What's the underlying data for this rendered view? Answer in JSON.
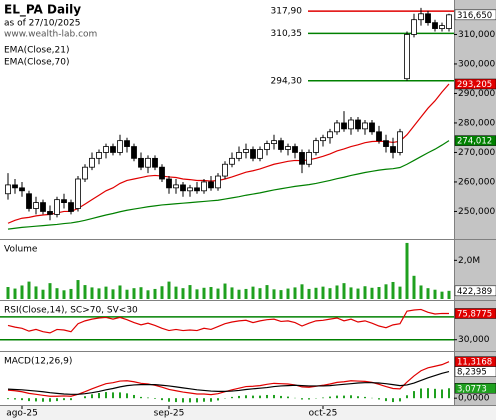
{
  "chart_data": [
    {
      "type": "candlestick",
      "title": "EL_PA Daily",
      "subtitle": "as of 27/10/2025",
      "source": "www.wealth-lab.com",
      "color": "#000000",
      "open": [
        256,
        259,
        258,
        256,
        251,
        253,
        250,
        249,
        254,
        253,
        251,
        261,
        265,
        268,
        270,
        272,
        270,
        274,
        272,
        268,
        265,
        268,
        265,
        261,
        258,
        259,
        257,
        258,
        257,
        260,
        258,
        262,
        266,
        268,
        270,
        271,
        268,
        271,
        273,
        274,
        271,
        272,
        270,
        266,
        270,
        274,
        275,
        277,
        280,
        278,
        281,
        278,
        280,
        277,
        274,
        272,
        270,
        295,
        310,
        315,
        317,
        314,
        312,
        312
      ],
      "high": [
        263,
        261,
        260,
        257,
        255,
        254,
        252,
        255,
        256,
        254,
        262,
        266,
        270,
        271,
        273,
        273,
        276,
        275,
        273,
        270,
        269,
        269,
        266,
        262,
        261,
        260,
        259,
        260,
        261,
        262,
        263,
        267,
        270,
        272,
        273,
        272,
        272,
        274,
        276,
        275,
        273,
        273,
        271,
        271,
        275,
        276,
        278,
        281,
        284,
        282,
        282,
        281,
        281,
        279,
        276,
        275,
        278,
        311,
        317,
        319,
        318,
        315,
        314,
        317
      ],
      "low": [
        254,
        256,
        255,
        250,
        249,
        249,
        247,
        248,
        251,
        249,
        250,
        260,
        264,
        266,
        268,
        269,
        269,
        270,
        267,
        264,
        263,
        264,
        260,
        256,
        256,
        255,
        255,
        256,
        256,
        257,
        257,
        261,
        265,
        267,
        268,
        267,
        267,
        269,
        271,
        270,
        269,
        268,
        263,
        265,
        269,
        272,
        273,
        276,
        277,
        276,
        277,
        276,
        276,
        273,
        270,
        268,
        269,
        294.3,
        309,
        313,
        313,
        311,
        311,
        311
      ],
      "close": [
        259,
        258,
        257,
        251,
        253,
        250,
        249,
        254,
        253,
        250,
        261,
        265,
        268,
        270,
        272,
        270,
        274,
        272,
        268,
        265,
        268,
        265,
        261,
        258,
        259,
        257,
        258,
        257,
        260,
        258,
        262,
        266,
        268,
        270,
        271,
        268,
        271,
        273,
        274,
        271,
        272,
        270,
        266,
        270,
        274,
        275,
        277,
        280,
        278,
        281,
        278,
        280,
        277,
        274,
        272,
        270,
        277,
        310,
        315,
        317,
        314,
        312,
        313,
        316.65
      ],
      "end_label": "316,650",
      "overlays": [
        {
          "name": "EMA(Close,21)",
          "color": "#e00000",
          "end_label": "293,205",
          "values": [
            246,
            247,
            247.7,
            248,
            248.5,
            248.8,
            249,
            249.5,
            250,
            250,
            251,
            252.5,
            254,
            255.5,
            257,
            258,
            259.5,
            260.5,
            261,
            261.5,
            262,
            262.2,
            262,
            261.7,
            261.5,
            261,
            260.8,
            260.5,
            260.5,
            260.3,
            260.5,
            261,
            261.7,
            262.5,
            263.3,
            263.8,
            264.4,
            265.2,
            266,
            266.5,
            267,
            267.3,
            267.2,
            267.5,
            268,
            268.7,
            269.5,
            270.5,
            271.2,
            272,
            272.6,
            273.3,
            273.7,
            273.8,
            273.7,
            273.4,
            273.8,
            276,
            279,
            282,
            285,
            287.5,
            290.5,
            293.205
          ]
        },
        {
          "name": "EMA(Close,70)",
          "color": "#008000",
          "end_label": "274,012",
          "values": [
            244,
            244.3,
            244.6,
            244.8,
            245,
            245.2,
            245.4,
            245.6,
            245.9,
            246.1,
            246.5,
            247,
            247.6,
            248.2,
            248.8,
            249.3,
            249.9,
            250.4,
            250.8,
            251.2,
            251.6,
            251.9,
            252.2,
            252.4,
            252.6,
            252.8,
            253,
            253.2,
            253.4,
            253.6,
            253.8,
            254.2,
            254.6,
            255,
            255.5,
            255.9,
            256.3,
            256.8,
            257.3,
            257.7,
            258.1,
            258.5,
            258.8,
            259.1,
            259.5,
            260,
            260.5,
            261.1,
            261.6,
            262.2,
            262.7,
            263.2,
            263.6,
            264,
            264.3,
            264.5,
            264.9,
            266,
            267.3,
            268.6,
            269.9,
            271.1,
            272.5,
            274.012
          ]
        }
      ],
      "levels": [
        {
          "value": 317.9,
          "label": "317,90",
          "color": "#e00000"
        },
        {
          "value": 310.35,
          "label": "310,35",
          "color": "#008000"
        },
        {
          "value": 294.3,
          "label": "294,30",
          "color": "#008000"
        }
      ],
      "ylim": [
        241,
        321
      ],
      "yticks": [
        {
          "value": 250,
          "label": "250,000"
        },
        {
          "value": 260,
          "label": "260,000"
        },
        {
          "value": 270,
          "label": "270,000"
        },
        {
          "value": 280,
          "label": "280,000"
        },
        {
          "value": 290,
          "label": "290,000"
        },
        {
          "value": 300,
          "label": "300,000"
        },
        {
          "value": 310,
          "label": "310,000"
        }
      ]
    },
    {
      "type": "bar",
      "title": "Volume",
      "color": "#1fa01f",
      "end_label": "422,389",
      "values": [
        620000,
        540000,
        700000,
        900000,
        650000,
        480000,
        820000,
        560000,
        450000,
        520000,
        980000,
        720000,
        600000,
        550000,
        640000,
        500000,
        700000,
        480000,
        560000,
        610000,
        450000,
        520000,
        660000,
        900000,
        640000,
        560000,
        720000,
        500000,
        580000,
        620000,
        540000,
        800000,
        600000,
        480000,
        520000,
        640000,
        560000,
        720000,
        500000,
        460000,
        540000,
        600000,
        760000,
        520000,
        580000,
        640000,
        560000,
        700000,
        820000,
        600000,
        540000,
        660000,
        580000,
        620000,
        760000,
        880000,
        640000,
        2900000,
        1200000,
        700000,
        560000,
        480000,
        380000,
        422389
      ],
      "ylim": [
        0,
        3000000
      ],
      "yticks": [
        {
          "value": 2000000,
          "label": "2,0M"
        }
      ]
    },
    {
      "type": "line",
      "title": "RSI(Close,14), SC>70, SV<30",
      "series": [
        {
          "color": "#e00000",
          "end_label": "75,8775",
          "values": [
            55,
            52,
            50,
            45,
            48,
            44,
            42,
            48,
            47,
            44,
            58,
            63,
            66,
            68,
            69,
            66,
            69,
            65,
            60,
            56,
            59,
            55,
            50,
            46,
            48,
            46,
            47,
            46,
            50,
            48,
            53,
            58,
            61,
            63,
            64,
            60,
            63,
            65,
            66,
            62,
            63,
            60,
            54,
            59,
            63,
            64,
            66,
            68,
            63,
            66,
            61,
            63,
            59,
            54,
            51,
            56,
            58,
            80,
            82,
            83,
            78,
            75,
            76,
            75.8775
          ]
        }
      ],
      "levels": [
        {
          "value": 70,
          "color": "#008000"
        },
        {
          "value": 30,
          "color": "#008000"
        }
      ],
      "ylim": [
        12,
        96
      ],
      "yticks": [
        {
          "value": 30,
          "label": "30,000"
        }
      ]
    },
    {
      "type": "line",
      "title": "MACD(12,26,9)",
      "series": [
        {
          "color": "#e00000",
          "end_label": "11,3168",
          "values": [
            2.5,
            2.3,
            2.0,
            1.5,
            1.2,
            0.9,
            0.6,
            0.6,
            0.7,
            0.6,
            1.2,
            2.0,
            2.9,
            3.7,
            4.5,
            4.8,
            5.3,
            5.4,
            5.1,
            4.6,
            4.4,
            4.0,
            3.4,
            2.7,
            2.3,
            1.9,
            1.6,
            1.3,
            1.3,
            1.1,
            1.4,
            2.0,
            2.6,
            3.1,
            3.6,
            3.7,
            3.9,
            4.3,
            4.6,
            4.5,
            4.4,
            4.1,
            3.5,
            3.4,
            3.7,
            4.0,
            4.4,
            4.9,
            5.1,
            5.4,
            5.3,
            5.2,
            4.9,
            4.3,
            3.6,
            3.0,
            2.9,
            5.0,
            6.9,
            8.5,
            9.4,
            9.9,
            10.4,
            11.3168
          ]
        },
        {
          "color": "#000000",
          "end_label": "8,2395",
          "values": [
            2.8,
            2.7,
            2.6,
            2.4,
            2.2,
            2.0,
            1.7,
            1.5,
            1.3,
            1.2,
            1.2,
            1.4,
            1.7,
            2.1,
            2.6,
            3.0,
            3.5,
            3.9,
            4.1,
            4.2,
            4.2,
            4.2,
            4.0,
            3.8,
            3.5,
            3.2,
            2.9,
            2.6,
            2.4,
            2.2,
            2.1,
            2.1,
            2.2,
            2.4,
            2.7,
            2.9,
            3.1,
            3.3,
            3.6,
            3.8,
            3.9,
            4.0,
            3.9,
            3.8,
            3.8,
            3.8,
            3.9,
            4.1,
            4.3,
            4.5,
            4.7,
            4.8,
            4.8,
            4.7,
            4.5,
            4.2,
            3.9,
            4.1,
            4.7,
            5.5,
            6.3,
            7.0,
            7.7,
            8.2395
          ]
        }
      ],
      "histogram": {
        "color": "#1fa01f",
        "end_label": "3,0773",
        "values": [
          -0.3,
          -0.4,
          -0.6,
          -0.9,
          -1.0,
          -1.1,
          -1.1,
          -0.9,
          -0.6,
          -0.6,
          0,
          0.6,
          1.2,
          1.6,
          1.9,
          1.8,
          1.8,
          1.5,
          1.0,
          0.4,
          0.2,
          -0.2,
          -0.6,
          -1.1,
          -1.2,
          -1.3,
          -1.3,
          -1.3,
          -1.1,
          -1.1,
          -0.7,
          -0.1,
          0.4,
          0.7,
          0.9,
          0.8,
          0.8,
          1.0,
          1.0,
          0.7,
          0.5,
          0.1,
          -0.4,
          -0.4,
          -0.1,
          0.2,
          0.5,
          0.8,
          0.8,
          0.9,
          0.6,
          0.4,
          0.1,
          -0.4,
          -0.9,
          -1.2,
          -1.0,
          0.9,
          2.2,
          3.0,
          3.1,
          2.9,
          2.7,
          3.0773
        ]
      },
      "ylim": [
        -1.8,
        14
      ],
      "yticks": [
        {
          "value": 0,
          "label": "0,0000"
        }
      ],
      "categories": [
        null,
        null,
        "ago-25",
        null,
        null,
        null,
        null,
        null,
        null,
        null,
        null,
        null,
        null,
        null,
        null,
        null,
        null,
        null,
        null,
        null,
        null,
        null,
        null,
        "sep-25",
        null,
        null,
        null,
        null,
        null,
        null,
        null,
        null,
        null,
        null,
        null,
        null,
        null,
        null,
        null,
        null,
        null,
        null,
        null,
        null,
        null,
        "oct-25",
        null,
        null,
        null,
        null,
        null,
        null,
        null,
        null,
        null,
        null,
        null,
        null,
        null,
        null,
        null,
        null,
        null,
        null
      ]
    }
  ]
}
